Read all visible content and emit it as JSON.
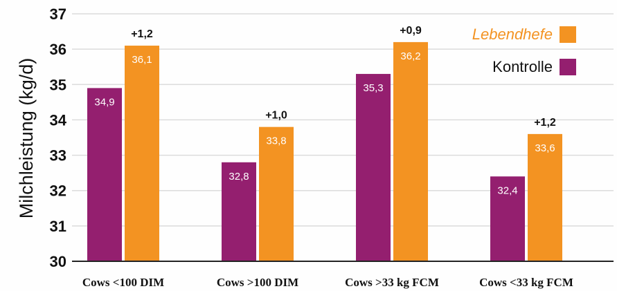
{
  "chart_data": {
    "type": "bar",
    "ylabel": "Milchleistung (kg/d)",
    "ylim": [
      30,
      37
    ],
    "yticks": [
      "30",
      "31",
      "32",
      "33",
      "34",
      "35",
      "36",
      "37"
    ],
    "grid": true,
    "legend_position": "top-right",
    "categories": [
      "Cows <100 DIM",
      "Cows >100 DIM",
      "Cows >33 kg FCM",
      "Cows <33 kg FCM"
    ],
    "series": [
      {
        "name": "Kontrolle",
        "color": "#941f6f",
        "values": [
          34.9,
          32.8,
          35.3,
          32.4
        ],
        "labels": [
          "34,9",
          "32,8",
          "35,3",
          "32,4"
        ]
      },
      {
        "name": "Lebendhefe",
        "color": "#f39322",
        "values": [
          36.1,
          33.8,
          36.2,
          33.6
        ],
        "labels": [
          "36,1",
          "33,8",
          "36,2",
          "33,6"
        ]
      }
    ],
    "differences": [
      "+1,2",
      "+1,0",
      "+0,9",
      "+1,2"
    ]
  }
}
